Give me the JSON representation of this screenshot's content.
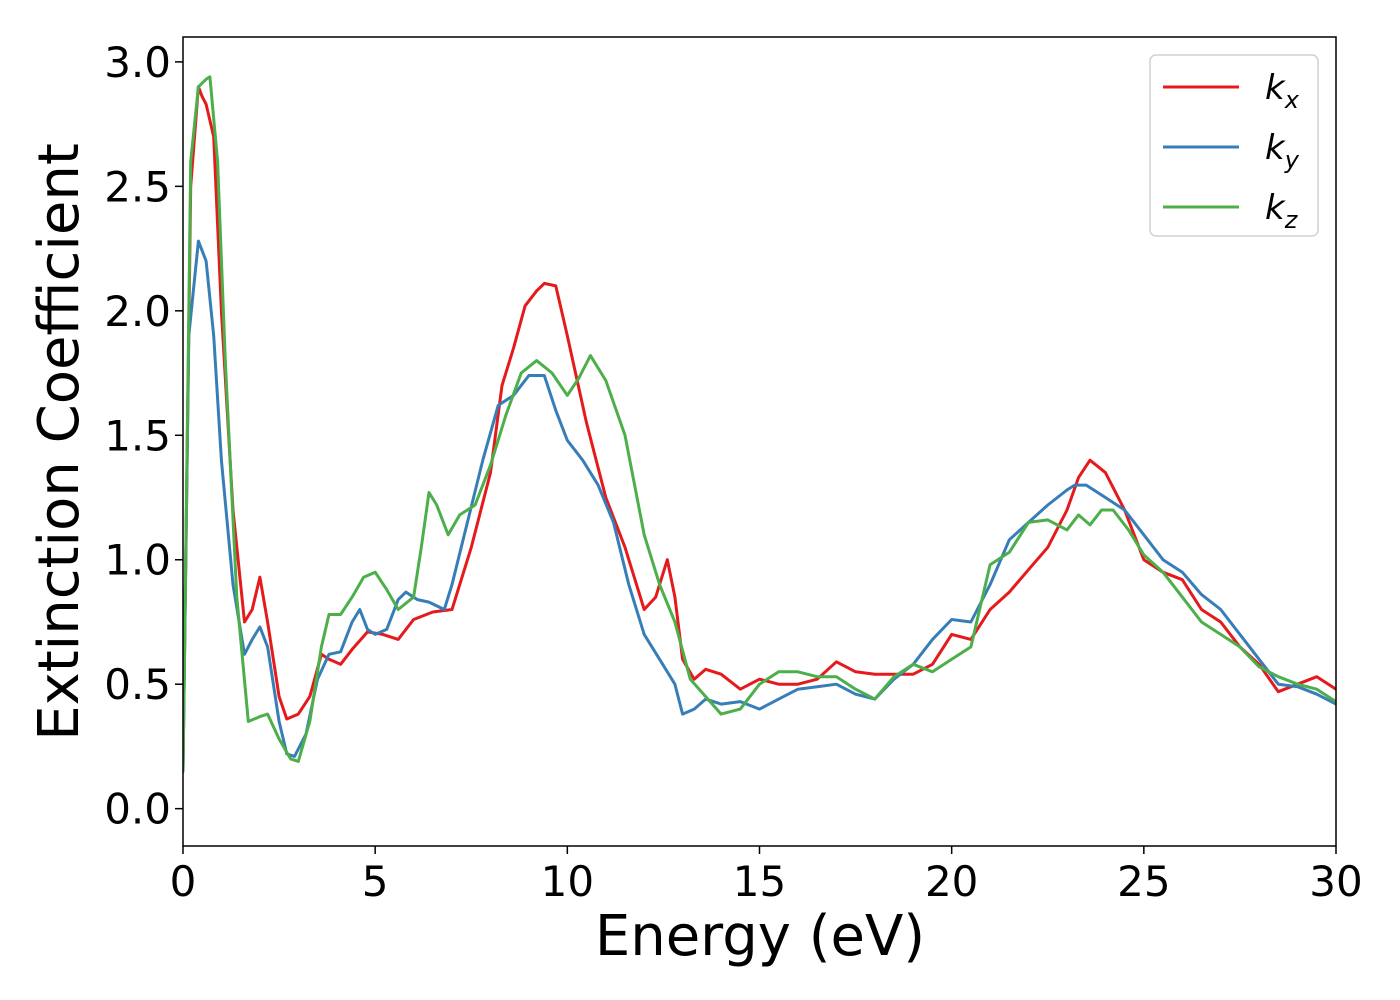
{
  "chart_data": {
    "type": "line",
    "xlabel": "Energy (eV)",
    "ylabel": "Extinction Coefficient",
    "xlim": [
      0,
      30
    ],
    "ylim": [
      -0.15,
      3.1
    ],
    "xticks": [
      0,
      5,
      10,
      15,
      20,
      25,
      30
    ],
    "xtick_labels": [
      "0",
      "5",
      "10",
      "15",
      "20",
      "25",
      "30"
    ],
    "yticks": [
      0.0,
      0.5,
      1.0,
      1.5,
      2.0,
      2.5,
      3.0
    ],
    "ytick_labels": [
      "0.0",
      "0.5",
      "1.0",
      "1.5",
      "2.0",
      "2.5",
      "3.0"
    ],
    "grid": false,
    "legend_position": "top-right",
    "series": [
      {
        "name": "k",
        "subscript": "x",
        "color": "#e41a1c",
        "x": [
          0,
          0.2,
          0.4,
          0.5,
          0.6,
          0.8,
          1.0,
          1.3,
          1.6,
          1.8,
          2.0,
          2.2,
          2.5,
          2.7,
          3.0,
          3.3,
          3.6,
          3.8,
          4.1,
          4.4,
          4.8,
          5.2,
          5.6,
          6.0,
          6.5,
          7.0,
          7.5,
          8.0,
          8.3,
          8.6,
          8.9,
          9.2,
          9.4,
          9.7,
          10.0,
          10.5,
          11.0,
          11.5,
          12.0,
          12.3,
          12.6,
          12.8,
          13.0,
          13.3,
          13.6,
          14.0,
          14.5,
          15.0,
          15.5,
          16.0,
          16.5,
          17.0,
          17.5,
          18.0,
          18.5,
          19.0,
          19.5,
          20.0,
          20.5,
          21.0,
          21.5,
          22.0,
          22.5,
          23.0,
          23.3,
          23.6,
          24.0,
          24.5,
          25.0,
          25.5,
          26.0,
          26.5,
          27.0,
          27.5,
          28.0,
          28.5,
          29.0,
          29.5,
          30.0
        ],
        "y": [
          0.15,
          2.5,
          2.9,
          2.86,
          2.83,
          2.7,
          2.0,
          1.2,
          0.75,
          0.8,
          0.93,
          0.75,
          0.45,
          0.36,
          0.38,
          0.45,
          0.62,
          0.6,
          0.58,
          0.64,
          0.71,
          0.7,
          0.68,
          0.76,
          0.79,
          0.8,
          1.05,
          1.35,
          1.7,
          1.85,
          2.02,
          2.08,
          2.11,
          2.1,
          1.9,
          1.55,
          1.25,
          1.05,
          0.8,
          0.85,
          1.0,
          0.85,
          0.6,
          0.52,
          0.56,
          0.54,
          0.48,
          0.52,
          0.5,
          0.5,
          0.52,
          0.59,
          0.55,
          0.54,
          0.54,
          0.54,
          0.58,
          0.7,
          0.68,
          0.8,
          0.87,
          0.96,
          1.05,
          1.2,
          1.33,
          1.4,
          1.35,
          1.2,
          1.0,
          0.95,
          0.92,
          0.8,
          0.75,
          0.65,
          0.58,
          0.47,
          0.5,
          0.53,
          0.48
        ]
      },
      {
        "name": "k",
        "subscript": "y",
        "color": "#377eb8",
        "x": [
          0,
          0.15,
          0.4,
          0.6,
          0.8,
          1.0,
          1.3,
          1.6,
          1.8,
          2.0,
          2.2,
          2.5,
          2.7,
          2.9,
          3.2,
          3.5,
          3.8,
          4.1,
          4.4,
          4.6,
          4.8,
          5.0,
          5.3,
          5.6,
          5.8,
          6.1,
          6.4,
          6.8,
          7.0,
          7.4,
          7.8,
          8.2,
          8.6,
          9.0,
          9.4,
          9.7,
          10.0,
          10.4,
          10.8,
          11.2,
          11.6,
          12.0,
          12.4,
          12.8,
          13.0,
          13.3,
          13.6,
          14.0,
          14.5,
          15.0,
          15.5,
          16.0,
          16.5,
          17.0,
          17.5,
          18.0,
          18.5,
          19.0,
          19.5,
          20.0,
          20.5,
          21.0,
          21.5,
          22.0,
          22.5,
          23.0,
          23.2,
          23.5,
          24.0,
          24.5,
          25.0,
          25.5,
          26.0,
          26.5,
          27.0,
          27.5,
          28.0,
          28.5,
          29.0,
          29.5,
          30.0
        ],
        "y": [
          0.15,
          1.9,
          2.28,
          2.2,
          1.9,
          1.4,
          0.9,
          0.62,
          0.68,
          0.73,
          0.65,
          0.35,
          0.22,
          0.21,
          0.3,
          0.52,
          0.62,
          0.63,
          0.75,
          0.8,
          0.72,
          0.7,
          0.72,
          0.84,
          0.87,
          0.84,
          0.83,
          0.8,
          0.9,
          1.15,
          1.4,
          1.62,
          1.66,
          1.74,
          1.74,
          1.6,
          1.48,
          1.4,
          1.3,
          1.15,
          0.9,
          0.7,
          0.6,
          0.5,
          0.38,
          0.4,
          0.44,
          0.42,
          0.43,
          0.4,
          0.44,
          0.48,
          0.49,
          0.5,
          0.46,
          0.44,
          0.52,
          0.58,
          0.68,
          0.76,
          0.75,
          0.9,
          1.08,
          1.15,
          1.22,
          1.28,
          1.3,
          1.3,
          1.25,
          1.2,
          1.1,
          1.0,
          0.95,
          0.86,
          0.8,
          0.7,
          0.6,
          0.5,
          0.49,
          0.46,
          0.42
        ]
      },
      {
        "name": "k",
        "subscript": "z",
        "color": "#4daf4a",
        "x": [
          0,
          0.2,
          0.4,
          0.6,
          0.7,
          0.9,
          1.1,
          1.4,
          1.7,
          2.0,
          2.2,
          2.5,
          2.8,
          3.0,
          3.3,
          3.6,
          3.8,
          4.1,
          4.4,
          4.7,
          5.0,
          5.3,
          5.6,
          6.0,
          6.2,
          6.4,
          6.6,
          6.9,
          7.2,
          7.6,
          8.0,
          8.4,
          8.8,
          9.2,
          9.6,
          10.0,
          10.3,
          10.6,
          11.0,
          11.5,
          12.0,
          12.4,
          12.8,
          13.2,
          13.6,
          14.0,
          14.5,
          15.0,
          15.5,
          16.0,
          16.5,
          17.0,
          17.5,
          18.0,
          18.5,
          19.0,
          19.5,
          20.0,
          20.5,
          21.0,
          21.5,
          22.0,
          22.5,
          23.0,
          23.3,
          23.6,
          23.9,
          24.2,
          24.6,
          25.0,
          25.5,
          26.0,
          26.5,
          27.0,
          27.5,
          28.0,
          28.5,
          29.0,
          29.5,
          30.0
        ],
        "y": [
          0.15,
          2.6,
          2.9,
          2.93,
          2.94,
          2.6,
          1.8,
          0.85,
          0.35,
          0.37,
          0.38,
          0.28,
          0.2,
          0.19,
          0.35,
          0.65,
          0.78,
          0.78,
          0.85,
          0.93,
          0.95,
          0.88,
          0.8,
          0.85,
          1.05,
          1.27,
          1.22,
          1.1,
          1.18,
          1.22,
          1.38,
          1.58,
          1.75,
          1.8,
          1.75,
          1.66,
          1.73,
          1.82,
          1.72,
          1.5,
          1.1,
          0.9,
          0.75,
          0.52,
          0.45,
          0.38,
          0.4,
          0.5,
          0.55,
          0.55,
          0.53,
          0.53,
          0.48,
          0.44,
          0.53,
          0.58,
          0.55,
          0.6,
          0.65,
          0.98,
          1.03,
          1.15,
          1.16,
          1.12,
          1.18,
          1.14,
          1.2,
          1.2,
          1.12,
          1.02,
          0.95,
          0.85,
          0.75,
          0.7,
          0.65,
          0.57,
          0.53,
          0.5,
          0.48,
          0.43
        ]
      }
    ]
  }
}
